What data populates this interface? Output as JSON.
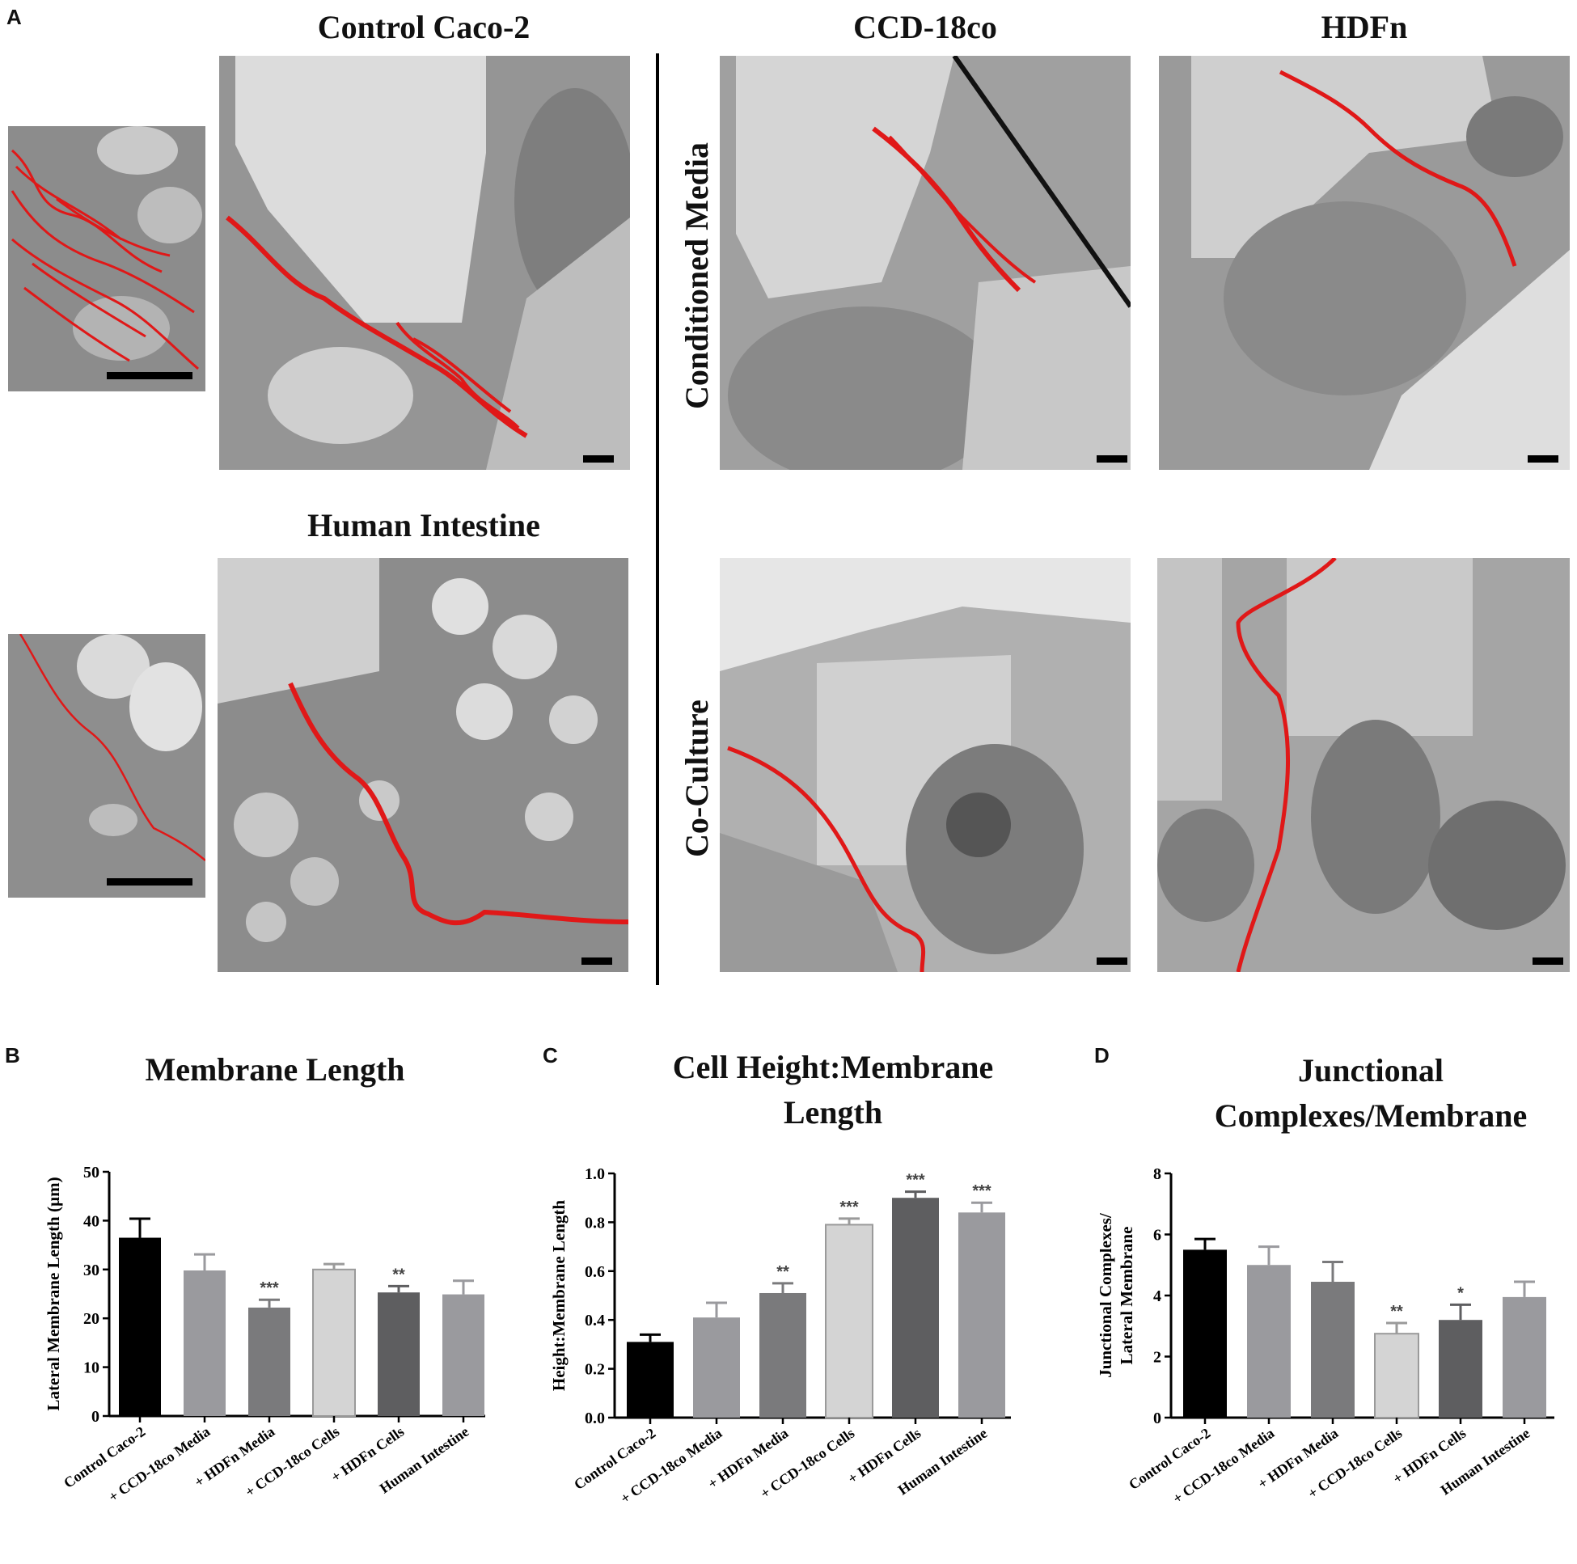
{
  "panel_labels": {
    "a": "A",
    "b": "B",
    "c": "C",
    "d": "D"
  },
  "headings": {
    "control": "Control Caco-2",
    "ccd": "CCD-18co",
    "hdfn": "HDFn",
    "human": "Human Intestine",
    "conditioned": "Conditioned Media",
    "coculture": "Co-Culture"
  },
  "colors": {
    "trace": "#e01818",
    "bar_black": "#000000",
    "bar_midgray": "#9a9a9e",
    "bar_darkgray": "#7a7a7c",
    "bar_light": "#d4d4d4",
    "bar_dark": "#5e5e60"
  },
  "chart_data": [
    {
      "type": "bar",
      "title": "Membrane Length",
      "ylabel": "Lateral Membrane Length (µm)",
      "categories": [
        "Control Caco-2",
        "+ CCD-18co Media",
        "+ HDFn Media",
        "+ CCD-18co Cells",
        "+ HDFn Cells",
        "Human Intestine"
      ],
      "values": [
        36.5,
        29.8,
        22.2,
        30.0,
        25.3,
        24.9
      ],
      "errors": [
        3.9,
        3.3,
        1.6,
        1.1,
        1.3,
        2.8
      ],
      "significance": [
        "",
        "",
        "***",
        "",
        "**",
        ""
      ],
      "ylim": [
        0,
        50
      ],
      "yticks": [
        "0",
        "10",
        "20",
        "30",
        "40",
        "50"
      ],
      "colors": [
        "#000000",
        "#9a9a9e",
        "#7a7a7c",
        "#d4d4d4",
        "#5e5e60",
        "#9a9a9e"
      ]
    },
    {
      "type": "bar",
      "title": "Cell Height:Membrane Length",
      "ylabel": "Height:Membrane Length",
      "categories": [
        "Control Caco-2",
        "+ CCD-18co Media",
        "+ HDFn Media",
        "+ CCD-18co Cells",
        "+ HDFn Cells",
        "Human Intestine"
      ],
      "values": [
        0.31,
        0.41,
        0.51,
        0.79,
        0.9,
        0.84
      ],
      "errors": [
        0.03,
        0.06,
        0.04,
        0.025,
        0.025,
        0.04
      ],
      "significance": [
        "",
        "",
        "**",
        "***",
        "***",
        "***"
      ],
      "ylim": [
        0,
        1.0
      ],
      "yticks": [
        "0.0",
        "0.2",
        "0.4",
        "0.6",
        "0.8",
        "1.0"
      ],
      "colors": [
        "#000000",
        "#9a9a9e",
        "#7a7a7c",
        "#d4d4d4",
        "#5e5e60",
        "#9a9a9e"
      ]
    },
    {
      "type": "bar",
      "title": "Junctional Complexes/Membrane",
      "ylabel": "Junctional Complexes/ Lateral Membrane",
      "categories": [
        "Control Caco-2",
        "+ CCD-18co Media",
        "+ HDFn Media",
        "+ CCD-18co Cells",
        "+ HDFn Cells",
        "Human Intestine"
      ],
      "values": [
        5.5,
        5.0,
        4.45,
        2.75,
        3.2,
        3.95
      ],
      "errors": [
        0.35,
        0.6,
        0.65,
        0.35,
        0.5,
        0.5
      ],
      "significance": [
        "",
        "",
        "",
        "**",
        "*",
        ""
      ],
      "ylim": [
        0,
        8
      ],
      "yticks": [
        "0",
        "2",
        "4",
        "6",
        "8"
      ],
      "colors": [
        "#000000",
        "#9a9a9e",
        "#7a7a7c",
        "#d4d4d4",
        "#5e5e60",
        "#9a9a9e"
      ]
    }
  ]
}
